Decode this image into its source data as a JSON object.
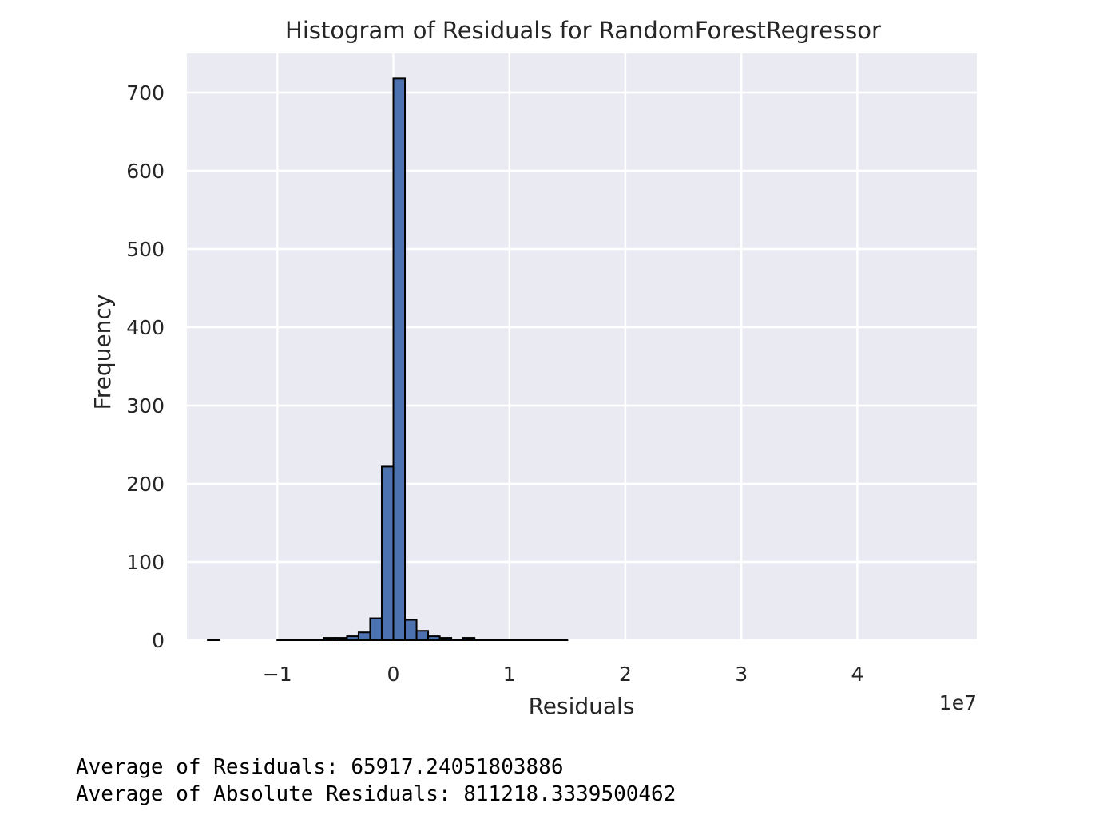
{
  "chart_data": {
    "type": "bar",
    "subtype": "histogram",
    "title": "Histogram of Residuals for RandomForestRegressor",
    "xlabel": "Residuals",
    "ylabel": "Frequency",
    "x_offset_label": "1e7",
    "x_scale": 10000000,
    "xlim": [
      -1.78,
      5.03
    ],
    "ylim": [
      0,
      750
    ],
    "x_ticks": [
      -1,
      0,
      1,
      2,
      3,
      4
    ],
    "x_tick_labels": [
      "−1",
      "0",
      "1",
      "2",
      "3",
      "4"
    ],
    "y_ticks": [
      0,
      100,
      200,
      300,
      400,
      500,
      600,
      700
    ],
    "y_tick_labels": [
      "0",
      "100",
      "200",
      "300",
      "400",
      "500",
      "600",
      "700"
    ],
    "bin_width": 0.1,
    "bin_starts": [
      -1.6,
      -1.0,
      -0.9,
      -0.8,
      -0.7,
      -0.6,
      -0.5,
      -0.4,
      -0.3,
      -0.2,
      -0.1,
      0.0,
      0.1,
      0.2,
      0.3,
      0.4,
      0.5,
      0.6,
      0.7,
      0.8,
      0.9,
      1.0,
      1.1,
      1.2,
      1.3,
      1.4
    ],
    "values": [
      1,
      1,
      1,
      1,
      1,
      3,
      3,
      5,
      10,
      28,
      222,
      718,
      26,
      12,
      5,
      3,
      1,
      3,
      1,
      1,
      1,
      1,
      1,
      1,
      1,
      1
    ],
    "grid": true,
    "colors": {
      "bar_fill": "#4c72b0",
      "bar_edge": "#000000",
      "plot_background": "#eaeaf2",
      "grid": "#ffffff",
      "text": "#262626"
    }
  },
  "output": {
    "avg_residuals": "Average of Residuals: 65917.24051803886",
    "avg_abs_residuals": "Average of Absolute Residuals: 811218.3339500462"
  }
}
